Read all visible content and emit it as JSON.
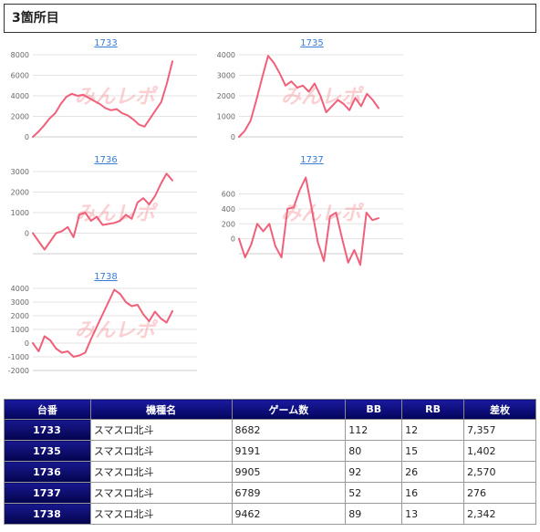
{
  "section_title": "3箇所目",
  "watermark": "みんレポ",
  "chart_data": [
    {
      "type": "line",
      "title": "1733",
      "yticks": [
        0,
        2000,
        4000,
        6000,
        8000
      ],
      "ylim": [
        0,
        8000
      ],
      "values": [
        0,
        500,
        1100,
        1800,
        2300,
        3200,
        3900,
        4200,
        4000,
        4100,
        3800,
        3500,
        3200,
        2800,
        2600,
        2700,
        2300,
        2100,
        1700,
        1200,
        1000,
        1800,
        2600,
        3400,
        5200,
        7357
      ]
    },
    {
      "type": "line",
      "title": "1735",
      "yticks": [
        0,
        1000,
        2000,
        3000,
        4000
      ],
      "ylim": [
        0,
        4000
      ],
      "values": [
        0,
        300,
        800,
        1800,
        2900,
        3950,
        3600,
        3100,
        2500,
        2700,
        2400,
        2500,
        2200,
        2600,
        2000,
        1200,
        1500,
        1800,
        1600,
        1300,
        1900,
        1500,
        2100,
        1800,
        1402
      ]
    },
    {
      "type": "line",
      "title": "1736",
      "yticks": [
        0,
        1000,
        2000,
        3000
      ],
      "ylim": [
        -1000,
        3000
      ],
      "values": [
        0,
        -400,
        -800,
        -400,
        0,
        100,
        300,
        -200,
        900,
        1000,
        600,
        800,
        400,
        450,
        500,
        600,
        900,
        700,
        1500,
        1700,
        1400,
        1800,
        2400,
        2900,
        2570
      ]
    },
    {
      "type": "line",
      "title": "1737",
      "yticks": [
        0,
        200,
        400,
        600
      ],
      "ylim": [
        -200,
        900
      ],
      "values": [
        0,
        -250,
        -80,
        200,
        100,
        200,
        -100,
        -250,
        400,
        420,
        650,
        820,
        400,
        -50,
        -300,
        300,
        350,
        0,
        -320,
        -150,
        -350,
        350,
        250,
        276
      ]
    },
    {
      "type": "line",
      "title": "1738",
      "yticks": [
        -2000,
        -1000,
        0,
        1000,
        2000,
        3000,
        4000
      ],
      "ylim": [
        -2000,
        4000
      ],
      "values": [
        0,
        -600,
        500,
        200,
        -400,
        -700,
        -600,
        -1000,
        -900,
        -700,
        300,
        1200,
        2100,
        3000,
        3900,
        3600,
        3000,
        2700,
        2800,
        2100,
        1600,
        2300,
        1800,
        1500,
        2342
      ]
    }
  ],
  "table": {
    "headers": [
      "台番",
      "機種名",
      "ゲーム数",
      "BB",
      "RB",
      "差枚"
    ],
    "rows": [
      [
        "1733",
        "スマスロ北斗",
        "8682",
        "112",
        "12",
        "7,357"
      ],
      [
        "1735",
        "スマスロ北斗",
        "9191",
        "80",
        "15",
        "1,402"
      ],
      [
        "1736",
        "スマスロ北斗",
        "9905",
        "92",
        "26",
        "2,570"
      ],
      [
        "1737",
        "スマスロ北斗",
        "6789",
        "52",
        "16",
        "276"
      ],
      [
        "1738",
        "スマスロ北斗",
        "9462",
        "89",
        "13",
        "2,342"
      ]
    ]
  }
}
